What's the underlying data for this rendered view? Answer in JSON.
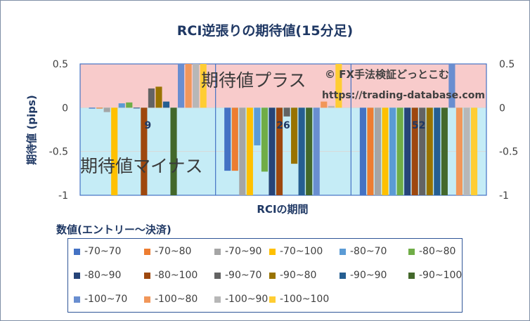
{
  "chart_data": {
    "type": "bar",
    "title": "RCI逆張りの期待値(15分足)",
    "xlabel": "RCIの期間",
    "ylabel": "期待値 (pips)",
    "ylim": [
      -1,
      0.5
    ],
    "y_ticks": [
      "0.5",
      "0",
      "-0.5",
      "-1"
    ],
    "y_ticks_right": [
      "0.5",
      "0",
      "-0.5",
      "-1"
    ],
    "categories": [
      "9",
      "26",
      "52"
    ],
    "bands": {
      "plus_label": "期待値プラス",
      "minus_label": "期待値マイナス",
      "plus_color": "#f8cbcb",
      "minus_color": "#c5ecf6"
    },
    "watermark": {
      "line1": "© FX手法検証どっとこむ",
      "line2": "https://trading-database.com"
    },
    "legend_title": "数値(エントリー～決済)",
    "series": [
      {
        "name": "-70~70",
        "color": "#4472c4",
        "values": [
          -0.01,
          -0.72,
          -1.0
        ]
      },
      {
        "name": "-70~80",
        "color": "#ed7d31",
        "values": [
          -0.01,
          -0.72,
          -1.0
        ]
      },
      {
        "name": "-70~90",
        "color": "#a5a5a5",
        "values": [
          -0.05,
          -1.0,
          -1.0
        ]
      },
      {
        "name": "-70~100",
        "color": "#ffc000",
        "values": [
          -1.0,
          -1.0,
          -1.0
        ]
      },
      {
        "name": "-80~70",
        "color": "#5b9bd5",
        "values": [
          0.05,
          -0.43,
          -1.0
        ]
      },
      {
        "name": "-80~80",
        "color": "#70ad47",
        "values": [
          0.06,
          -0.73,
          -1.0
        ]
      },
      {
        "name": "-80~90",
        "color": "#264478",
        "values": [
          0.0,
          -1.0,
          -1.0
        ]
      },
      {
        "name": "-80~100",
        "color": "#9e480e",
        "values": [
          -1.0,
          -1.0,
          -1.0
        ]
      },
      {
        "name": "-90~70",
        "color": "#636363",
        "values": [
          0.22,
          -0.1,
          -1.0
        ]
      },
      {
        "name": "-90~80",
        "color": "#997300",
        "values": [
          0.24,
          -0.64,
          -1.0
        ]
      },
      {
        "name": "-90~90",
        "color": "#255e91",
        "values": [
          0.07,
          -1.0,
          -1.0
        ]
      },
      {
        "name": "-90~100",
        "color": "#43682b",
        "values": [
          -1.0,
          -1.0,
          -1.0
        ]
      },
      {
        "name": "-100~70",
        "color": "#698ed0",
        "values": [
          0.5,
          -1.0,
          0.5
        ]
      },
      {
        "name": "-100~80",
        "color": "#f1975a",
        "values": [
          0.5,
          0.07,
          -1.0
        ]
      },
      {
        "name": "-100~90",
        "color": "#b7b7b7",
        "values": [
          0.5,
          0.02,
          -1.0
        ]
      },
      {
        "name": "-100~100",
        "color": "#ffcd33",
        "values": [
          0.5,
          0.5,
          -1.0
        ]
      }
    ]
  }
}
